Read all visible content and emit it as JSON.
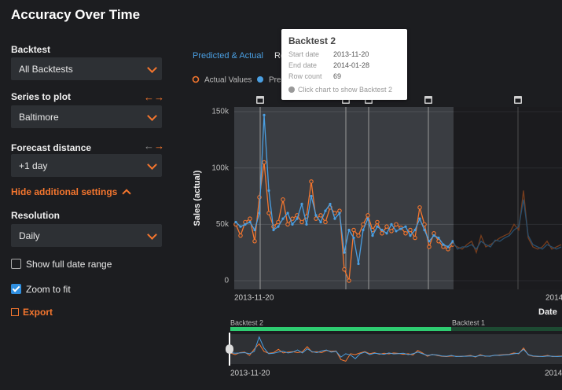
{
  "sidebar": {
    "title": "Accuracy Over Time",
    "fields": [
      {
        "label": "Backtest",
        "value": "All Backtests"
      },
      {
        "label": "Series to plot",
        "value": "Baltimore"
      },
      {
        "label": "Forecast distance",
        "value": "+1 day"
      }
    ],
    "toggle": "Hide additional settings",
    "resolution": {
      "label": "Resolution",
      "value": "Daily"
    },
    "checkboxes": [
      {
        "label": "Show full date range",
        "checked": false
      },
      {
        "label": "Zoom to fit",
        "checked": true
      }
    ],
    "export": "Export"
  },
  "tabs": [
    "Predicted & Actual",
    "Residuals"
  ],
  "tooltip": {
    "title": "Backtest 2",
    "rows": [
      {
        "label": "Start date",
        "value": "2013-11-20"
      },
      {
        "label": "End date",
        "value": "2014-01-28"
      },
      {
        "label": "Row count",
        "value": "69"
      }
    ],
    "hint": "Click chart to show Backtest 2"
  },
  "chart_data": {
    "type": "line",
    "x_label": "Date",
    "y_label": "Sales (actual)",
    "categories": [
      "2013-11-20",
      null,
      null,
      null,
      null,
      null,
      null,
      null,
      null,
      null,
      null,
      null,
      null,
      null,
      null,
      null,
      null,
      null,
      null,
      null,
      null,
      null,
      null,
      null,
      null,
      null,
      null,
      null,
      null,
      null,
      null,
      null,
      null,
      null,
      null,
      null,
      null,
      null,
      null,
      null,
      null,
      null,
      null,
      null,
      null,
      null,
      null,
      null,
      null,
      null,
      null,
      null,
      null,
      null,
      null,
      null,
      null,
      null,
      null,
      null,
      null,
      null,
      null,
      null,
      null,
      null,
      "2014",
      null,
      null,
      null
    ],
    "series": [
      {
        "name": "Actual Values",
        "color": "#f5762e",
        "values": [
          50000,
          40000,
          52000,
          55000,
          35000,
          74000,
          105000,
          60000,
          48000,
          52000,
          72000,
          50000,
          55000,
          58000,
          52000,
          57000,
          88000,
          55000,
          58000,
          52000,
          65000,
          60000,
          62000,
          10000,
          0,
          45000,
          40000,
          50000,
          58000,
          45000,
          52000,
          42000,
          48000,
          44000,
          50000,
          47000,
          42000,
          45000,
          38000,
          65000,
          50000,
          30000,
          42000,
          35000,
          30000,
          28000,
          32000,
          30000,
          28000,
          32000,
          35000,
          25000,
          40000,
          30000,
          32000,
          35000,
          38000,
          40000,
          42000,
          50000,
          45000,
          80000,
          38000,
          30000,
          28000,
          30000,
          35000,
          28000,
          30000,
          32000
        ]
      },
      {
        "name": "Predicted",
        "color": "#4a9fe2",
        "values": [
          52000,
          48000,
          50000,
          52000,
          45000,
          60000,
          147000,
          80000,
          45000,
          48000,
          55000,
          60000,
          50000,
          55000,
          68000,
          50000,
          75000,
          58000,
          52000,
          62000,
          68000,
          55000,
          60000,
          25000,
          45000,
          38000,
          15000,
          45000,
          55000,
          40000,
          48000,
          45000,
          42000,
          50000,
          44000,
          46000,
          48000,
          40000,
          45000,
          55000,
          45000,
          35000,
          40000,
          38000,
          32000,
          30000,
          35000,
          28000,
          30000,
          30000,
          32000,
          28000,
          35000,
          32000,
          30000,
          36000,
          35000,
          38000,
          40000,
          45000,
          48000,
          72000,
          40000,
          32000,
          30000,
          28000,
          32000,
          30000,
          28000,
          30000
        ]
      }
    ],
    "ylim": [
      -7700,
      154200
    ],
    "yticks": [
      0,
      {
        "value": 50000,
        "label": "50k"
      },
      {
        "value": 100000,
        "label": "100k"
      },
      {
        "value": 150000,
        "label": "150k"
      }
    ],
    "grid": true
  },
  "overview": {
    "labels": [
      "Backtest 2",
      "Backtest 1"
    ],
    "start": "2013-11-20",
    "end": "2014"
  }
}
